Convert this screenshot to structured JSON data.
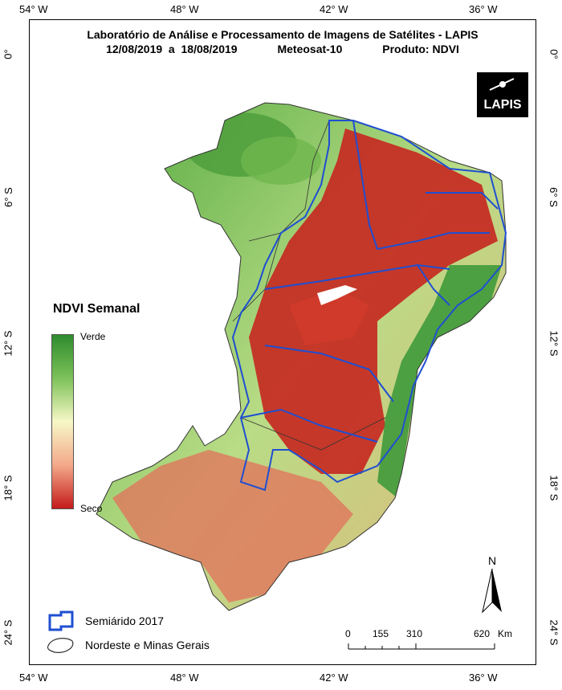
{
  "title": {
    "line1": "Laboratório de Análise e Processamento de Imagens de Satélites - LAPIS",
    "date_range": "12/08/2019  a  18/08/2019",
    "satellite": "Meteosat-10",
    "product": "Produto: NDVI"
  },
  "logo_text": "LAPIS",
  "lon_ticks": [
    "54° W",
    "48° W",
    "42° W",
    "36° W"
  ],
  "lat_ticks": [
    "0°",
    "6° S",
    "12° S",
    "18° S",
    "24° S"
  ],
  "legend": {
    "title": "NDVI Semanal",
    "top_label": "Verde",
    "bottom_label": "Seco",
    "items": [
      {
        "label": "Semiárido 2017"
      },
      {
        "label": "Nordeste e Minas Gerais"
      }
    ]
  },
  "scale_bar": {
    "labels": [
      "0",
      "155",
      "310",
      "620"
    ],
    "unit": "Km"
  },
  "north_label": "N",
  "colors": {
    "verde": "#2e8b2e",
    "seco": "#c41a1a",
    "semiarido_border": "#1f4fd1",
    "region_border": "#333333"
  }
}
